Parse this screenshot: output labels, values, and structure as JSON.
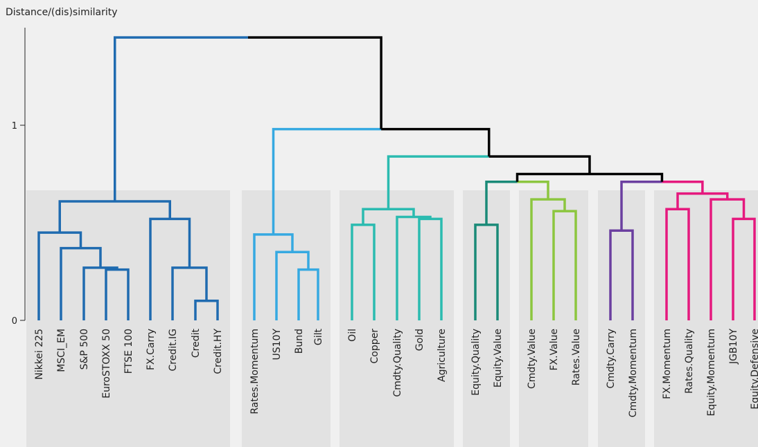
{
  "chart_data": {
    "type": "dendrogram",
    "title": "",
    "xlabel": "",
    "ylabel": "Distance/(dis)similarity",
    "ylim": [
      0,
      1.45
    ],
    "yticks": [
      {
        "value": 0,
        "label": "0"
      },
      {
        "value": 1,
        "label": "1"
      }
    ],
    "leaves": [
      "Nikkei 225",
      "MSCI_EM",
      "S&P 500",
      "EuroSTOXX 50",
      "FTSE 100",
      "FX.Carry",
      "Credit.IG",
      "Credit",
      "Credit.HY",
      "Rates.Momentum",
      "US10Y",
      "Bund",
      "Gilt",
      "Oil",
      "Copper",
      "Cmdty.Quality",
      "Gold",
      "Agriculture",
      "Equity.Quality",
      "Equity.Value",
      "Cmdty.Value",
      "FX.Value",
      "Rates.Value",
      "Cmdty.Carry",
      "Cmdty.Momentum",
      "FX.Momentum",
      "Rates.Quality",
      "Equity.Momentum",
      "JGB10Y",
      "Equity.Defensive"
    ],
    "clusters": [
      {
        "start": 0,
        "end": 8,
        "color": "#1f6bb0"
      },
      {
        "start": 9,
        "end": 12,
        "color": "#36a9e1"
      },
      {
        "start": 13,
        "end": 17,
        "color": "#2bbbb0"
      },
      {
        "start": 18,
        "end": 19,
        "color": "#1a8a78"
      },
      {
        "start": 20,
        "end": 22,
        "color": "#8cc63f"
      },
      {
        "start": 23,
        "end": 24,
        "color": "#6b3fa0"
      },
      {
        "start": 25,
        "end": 29,
        "color": "#e5197e"
      }
    ],
    "merges": [
      {
        "id": "m1",
        "a": "Credit",
        "b": "Credit.HY",
        "height": 0.1,
        "color": "#1f6bb0"
      },
      {
        "id": "m2",
        "a": "EuroSTOXX 50",
        "b": "FTSE 100",
        "height": 0.26,
        "color": "#1f6bb0"
      },
      {
        "id": "m3",
        "a": "S&P 500",
        "b": "m2",
        "height": 0.27,
        "color": "#1f6bb0"
      },
      {
        "id": "m4",
        "a": "MSCI_EM",
        "b": "m3",
        "height": 0.37,
        "color": "#1f6bb0"
      },
      {
        "id": "m5",
        "a": "Nikkei 225",
        "b": "m4",
        "height": 0.45,
        "color": "#1f6bb0"
      },
      {
        "id": "m6",
        "a": "Credit.IG",
        "b": "m1",
        "height": 0.27,
        "color": "#1f6bb0"
      },
      {
        "id": "m7",
        "a": "FX.Carry",
        "b": "m6",
        "height": 0.52,
        "color": "#1f6bb0"
      },
      {
        "id": "m8",
        "a": "m5",
        "b": "m7",
        "height": 0.61,
        "color": "#1f6bb0"
      },
      {
        "id": "m9",
        "a": "Bund",
        "b": "Gilt",
        "height": 0.26,
        "color": "#36a9e1"
      },
      {
        "id": "m10",
        "a": "US10Y",
        "b": "m9",
        "height": 0.35,
        "color": "#36a9e1"
      },
      {
        "id": "m11",
        "a": "Rates.Momentum",
        "b": "m10",
        "height": 0.44,
        "color": "#36a9e1"
      },
      {
        "id": "m12",
        "a": "Gold",
        "b": "Agriculture",
        "height": 0.52,
        "color": "#2bbbb0"
      },
      {
        "id": "m13",
        "a": "Cmdty.Quality",
        "b": "m12",
        "height": 0.53,
        "color": "#2bbbb0"
      },
      {
        "id": "m14",
        "a": "Oil",
        "b": "Copper",
        "height": 0.49,
        "color": "#2bbbb0"
      },
      {
        "id": "m15",
        "a": "m14",
        "b": "m13",
        "height": 0.57,
        "color": "#2bbbb0"
      },
      {
        "id": "m16",
        "a": "Equity.Quality",
        "b": "Equity.Value",
        "height": 0.49,
        "color": "#1a8a78"
      },
      {
        "id": "m17",
        "a": "FX.Value",
        "b": "Rates.Value",
        "height": 0.56,
        "color": "#8cc63f"
      },
      {
        "id": "m18",
        "a": "Cmdty.Value",
        "b": "m17",
        "height": 0.62,
        "color": "#8cc63f"
      },
      {
        "id": "m19",
        "a": "m16",
        "b": "m18",
        "height": 0.71,
        "color": "#8cc63f",
        "color_left": "#1a8a78"
      },
      {
        "id": "m20",
        "a": "Cmdty.Carry",
        "b": "Cmdty.Momentum",
        "height": 0.46,
        "color": "#6b3fa0"
      },
      {
        "id": "m21",
        "a": "FX.Momentum",
        "b": "Rates.Quality",
        "height": 0.57,
        "color": "#e5197e"
      },
      {
        "id": "m22",
        "a": "JGB10Y",
        "b": "Equity.Defensive",
        "height": 0.52,
        "color": "#e5197e"
      },
      {
        "id": "m23",
        "a": "Equity.Momentum",
        "b": "m22",
        "height": 0.62,
        "color": "#e5197e"
      },
      {
        "id": "m24",
        "a": "m21",
        "b": "m23",
        "height": 0.65,
        "color": "#e5197e"
      },
      {
        "id": "m25",
        "a": "m20",
        "b": "m24",
        "height": 0.71,
        "color": "#6b3fa0",
        "color_right": "#e5197e"
      },
      {
        "id": "m26",
        "a": "m19",
        "b": "m25",
        "height": 0.75,
        "color": "#000000"
      },
      {
        "id": "m27",
        "a": "m15",
        "b": "m26",
        "height": 0.84,
        "color": "#2bbbb0",
        "color_right": "#000000"
      },
      {
        "id": "m28",
        "a": "m11",
        "b": "m27",
        "height": 0.98,
        "color": "#36a9e1",
        "color_right": "#000000"
      },
      {
        "id": "m29",
        "a": "m8",
        "b": "m28",
        "height": 1.45,
        "color": "#1f6bb0",
        "color_right": "#000000"
      }
    ],
    "grid": false,
    "legend": "none"
  }
}
